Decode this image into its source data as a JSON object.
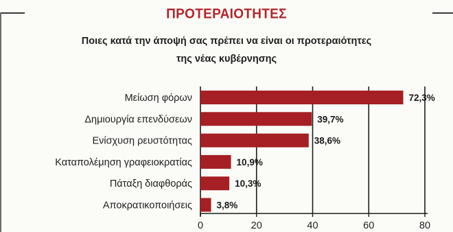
{
  "chart_data": {
    "type": "bar",
    "orientation": "horizontal",
    "title": "ΠΡΟΤΕΡΑΙΟΤΗΤΕΣ",
    "subtitle": [
      "Ποιες κατά την άποψή σας πρέπει να είναι οι προτεραιότητες",
      "της νέας κυβέρνησης"
    ],
    "categories": [
      "Μείωση φόρων",
      "Δημιουργία επενδύσεων",
      "Ενίσχυση ρευστότητας",
      "Καταπολέμηση γραφειοκρατίας",
      "Πάταξη διαφθοράς",
      "Αποκρατικοποιήσεις"
    ],
    "values": [
      72.3,
      39.7,
      38.6,
      10.9,
      10.3,
      3.8
    ],
    "value_labels": [
      "72,3%",
      "39,7%",
      "38,6%",
      "10,9%",
      "10,3%",
      "3,8%"
    ],
    "xlim": [
      0,
      80
    ],
    "xticks": [
      "0",
      "20",
      "40",
      "60",
      "80"
    ],
    "grid": "vertical lines at 20, 40, 60, 80",
    "bar_color": "#a51f24",
    "title_color": "#b3262a"
  }
}
